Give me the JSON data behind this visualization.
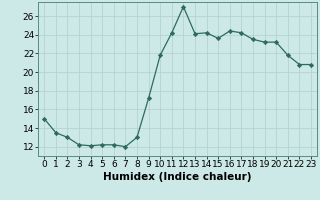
{
  "x": [
    0,
    1,
    2,
    3,
    4,
    5,
    6,
    7,
    8,
    9,
    10,
    11,
    12,
    13,
    14,
    15,
    16,
    17,
    18,
    19,
    20,
    21,
    22,
    23
  ],
  "y": [
    15,
    13.5,
    13,
    12.2,
    12.1,
    12.2,
    12.2,
    12,
    13,
    17.2,
    21.8,
    24.2,
    27,
    24.1,
    24.2,
    23.6,
    24.4,
    24.2,
    23.5,
    23.2,
    23.2,
    21.8,
    20.8,
    20.8
  ],
  "line_color": "#2e6b5e",
  "marker_color": "#2e6b5e",
  "bg_color": "#cce9e7",
  "grid_color": "#b0d0cd",
  "xlabel": "Humidex (Indice chaleur)",
  "xlim": [
    -0.5,
    23.5
  ],
  "ylim": [
    11,
    27.5
  ],
  "yticks": [
    12,
    14,
    16,
    18,
    20,
    22,
    24,
    26
  ],
  "xticks": [
    0,
    1,
    2,
    3,
    4,
    5,
    6,
    7,
    8,
    9,
    10,
    11,
    12,
    13,
    14,
    15,
    16,
    17,
    18,
    19,
    20,
    21,
    22,
    23
  ],
  "label_fontsize": 7.5,
  "tick_fontsize": 6.5
}
